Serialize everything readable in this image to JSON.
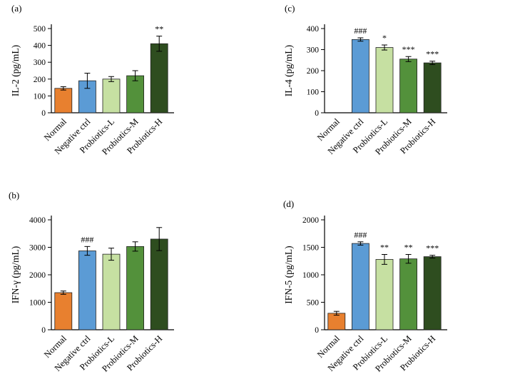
{
  "figure": {
    "panels": [
      "(a)",
      "(b)",
      "(c)",
      "(d)"
    ]
  },
  "colors": {
    "bars": [
      "#E8802F",
      "#5B9BD5",
      "#C6E0A2",
      "#53913B",
      "#2E4D1F"
    ],
    "axis": "#000000",
    "error_bar": "#000000",
    "background": "#FFFFFF"
  },
  "chart_data": [
    {
      "panel": "(a)",
      "type": "bar",
      "title": "",
      "xlabel": "",
      "ylabel": "IL-2 (pg/mL)",
      "ylim": [
        0,
        500
      ],
      "yticks": [
        0,
        100,
        200,
        300,
        400,
        500
      ],
      "grid": false,
      "legend": "none",
      "categories": [
        "Normal",
        "Negative ctrl",
        "Probiotics-L",
        "Probiotics-M",
        "Probiotics-H"
      ],
      "values": [
        145,
        190,
        200,
        220,
        410
      ],
      "errors": [
        10,
        45,
        15,
        30,
        45
      ],
      "annotations": [
        "",
        "",
        "",
        "",
        "**"
      ]
    },
    {
      "panel": "(b)",
      "type": "bar",
      "title": "",
      "xlabel": "",
      "ylabel": "IFN-γ (pg/mL)",
      "ylim": [
        0,
        4000
      ],
      "yticks": [
        0,
        1000,
        2000,
        3000,
        4000
      ],
      "grid": false,
      "legend": "none",
      "categories": [
        "Normal",
        "Negative ctrl",
        "Probiotics-L",
        "Probiotics-M",
        "Probiotics-H"
      ],
      "values": [
        1350,
        2870,
        2750,
        3030,
        3300
      ],
      "errors": [
        60,
        160,
        220,
        170,
        420
      ],
      "annotations": [
        "",
        "###",
        "",
        "",
        ""
      ]
    },
    {
      "panel": "(c)",
      "type": "bar",
      "title": "",
      "xlabel": "",
      "ylabel": "IL-4 (pg/mL)",
      "ylim": [
        0,
        400
      ],
      "yticks": [
        0,
        100,
        200,
        300,
        400
      ],
      "grid": false,
      "legend": "none",
      "categories": [
        "Normal",
        "Negative ctrl",
        "Probiotics-L",
        "Probiotics-M",
        "Probiotics-H"
      ],
      "values": [
        0,
        348,
        310,
        255,
        237
      ],
      "errors": [
        0,
        8,
        12,
        12,
        8
      ],
      "annotations": [
        "",
        "###",
        "*",
        "***",
        "***"
      ]
    },
    {
      "panel": "(d)",
      "type": "bar",
      "title": "",
      "xlabel": "",
      "ylabel": "IFN-5 (pg/mL)",
      "ylim": [
        0,
        2000
      ],
      "yticks": [
        0,
        500,
        1000,
        1500,
        2000
      ],
      "grid": false,
      "legend": "none",
      "categories": [
        "Normal",
        "Negative ctrl",
        "Probiotics-L",
        "Probiotics-M",
        "Probiotics-H"
      ],
      "values": [
        300,
        1570,
        1280,
        1290,
        1330
      ],
      "errors": [
        35,
        30,
        90,
        80,
        25
      ],
      "annotations": [
        "",
        "###",
        "**",
        "**",
        "***"
      ]
    }
  ]
}
